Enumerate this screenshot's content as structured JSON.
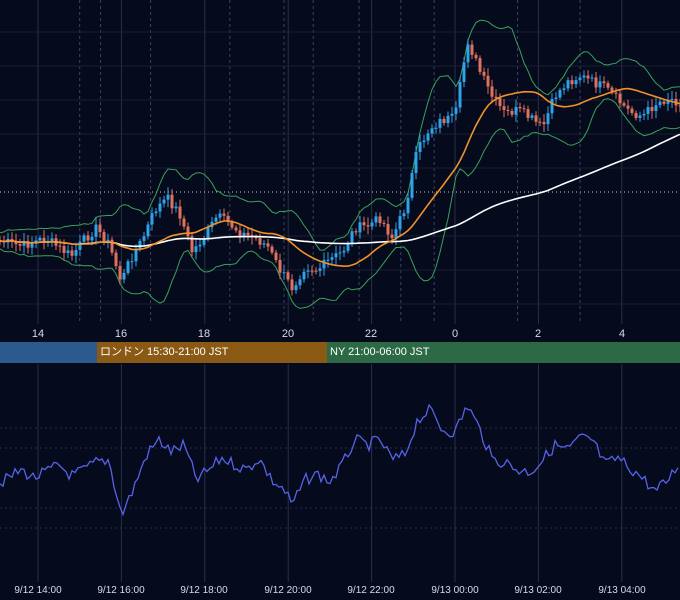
{
  "colors": {
    "background": "#060a1d",
    "candle_up": "#2fa3e8",
    "candle_down": "#e0725d",
    "bollinger": "#3aa15a",
    "ma_short": "#f0922a",
    "ma_long": "#ffffff",
    "oscillator": "#5563e6",
    "session_tokyo": "#2b5a8e",
    "session_london": "#8a5a14",
    "session_ny": "#2b6a45"
  },
  "top_axis": {
    "ticks": [
      "14",
      "16",
      "18",
      "20",
      "22",
      "0",
      "2",
      "4"
    ]
  },
  "sessions": [
    {
      "label": ""
    },
    {
      "label": "ロンドン 15:30-21:00 JST"
    },
    {
      "label": "NY 21:00-06:00 JST"
    }
  ],
  "bottom_axis": {
    "ticks": [
      "9/12 14:00",
      "9/12 16:00",
      "9/12 18:00",
      "9/12 20:00",
      "9/12 22:00",
      "9/13 00:00",
      "9/13 02:00",
      "9/13 04:00"
    ]
  },
  "chart_data": [
    {
      "type": "line",
      "description_of_series": "candlestick price with Bollinger bands and two moving averages",
      "x_range": [
        13.0,
        5.4
      ],
      "close_points": [
        [
          13.0,
          240
        ],
        [
          13.3,
          243
        ],
        [
          13.6,
          246
        ],
        [
          13.9,
          242
        ],
        [
          14.2,
          238
        ],
        [
          14.5,
          248
        ],
        [
          14.8,
          256
        ],
        [
          15.1,
          240
        ],
        [
          15.4,
          228
        ],
        [
          15.7,
          244
        ],
        [
          16.0,
          282
        ],
        [
          16.2,
          260
        ],
        [
          16.5,
          240
        ],
        [
          16.8,
          210
        ],
        [
          17.1,
          198
        ],
        [
          17.4,
          214
        ],
        [
          17.7,
          252
        ],
        [
          18.0,
          236
        ],
        [
          18.3,
          216
        ],
        [
          18.6,
          224
        ],
        [
          18.9,
          234
        ],
        [
          19.2,
          238
        ],
        [
          19.5,
          246
        ],
        [
          19.8,
          270
        ],
        [
          20.1,
          288
        ],
        [
          20.4,
          266
        ],
        [
          20.7,
          270
        ],
        [
          21.0,
          260
        ],
        [
          21.3,
          252
        ],
        [
          21.6,
          228
        ],
        [
          21.9,
          226
        ],
        [
          22.2,
          218
        ],
        [
          22.5,
          238
        ],
        [
          22.8,
          208
        ],
        [
          23.1,
          150
        ],
        [
          23.4,
          128
        ],
        [
          23.7,
          120
        ],
        [
          24.0,
          118
        ],
        [
          24.3,
          40
        ],
        [
          24.6,
          72
        ],
        [
          24.9,
          98
        ],
        [
          25.2,
          114
        ],
        [
          25.5,
          110
        ],
        [
          25.8,
          118
        ],
        [
          26.1,
          128
        ],
        [
          26.4,
          96
        ],
        [
          26.7,
          82
        ],
        [
          27.0,
          76
        ],
        [
          27.3,
          82
        ],
        [
          27.6,
          88
        ],
        [
          27.9,
          100
        ],
        [
          28.2,
          112
        ],
        [
          28.5,
          116
        ],
        [
          28.8,
          104
        ],
        [
          29.1,
          98
        ],
        [
          29.4,
          102
        ]
      ]
    },
    {
      "type": "line",
      "description_of_series": "oscillator",
      "points": [
        [
          13.0,
          485
        ],
        [
          13.3,
          478
        ],
        [
          13.6,
          470
        ],
        [
          13.9,
          478
        ],
        [
          14.2,
          472
        ],
        [
          14.5,
          465
        ],
        [
          14.8,
          476
        ],
        [
          15.1,
          470
        ],
        [
          15.4,
          462
        ],
        [
          15.7,
          460
        ],
        [
          16.0,
          515
        ],
        [
          16.3,
          488
        ],
        [
          16.6,
          455
        ],
        [
          16.9,
          440
        ],
        [
          17.2,
          452
        ],
        [
          17.5,
          445
        ],
        [
          17.8,
          480
        ],
        [
          18.1,
          470
        ],
        [
          18.4,
          458
        ],
        [
          18.7,
          464
        ],
        [
          19.0,
          470
        ],
        [
          19.3,
          458
        ],
        [
          19.6,
          480
        ],
        [
          19.9,
          490
        ],
        [
          20.1,
          505
        ],
        [
          20.4,
          480
        ],
        [
          20.7,
          474
        ],
        [
          21.0,
          482
        ],
        [
          21.3,
          465
        ],
        [
          21.6,
          440
        ],
        [
          21.9,
          445
        ],
        [
          22.2,
          440
        ],
        [
          22.5,
          460
        ],
        [
          22.8,
          455
        ],
        [
          23.1,
          420
        ],
        [
          23.4,
          410
        ],
        [
          23.7,
          430
        ],
        [
          24.0,
          432
        ],
        [
          24.3,
          405
        ],
        [
          24.6,
          430
        ],
        [
          24.9,
          460
        ],
        [
          25.2,
          462
        ],
        [
          25.5,
          470
        ],
        [
          25.8,
          472
        ],
        [
          26.1,
          460
        ],
        [
          26.4,
          445
        ],
        [
          26.7,
          450
        ],
        [
          27.0,
          438
        ],
        [
          27.3,
          440
        ],
        [
          27.6,
          465
        ],
        [
          27.9,
          458
        ],
        [
          28.2,
          468
        ],
        [
          28.5,
          478
        ],
        [
          28.8,
          492
        ],
        [
          29.1,
          480
        ],
        [
          29.4,
          462
        ]
      ]
    }
  ]
}
